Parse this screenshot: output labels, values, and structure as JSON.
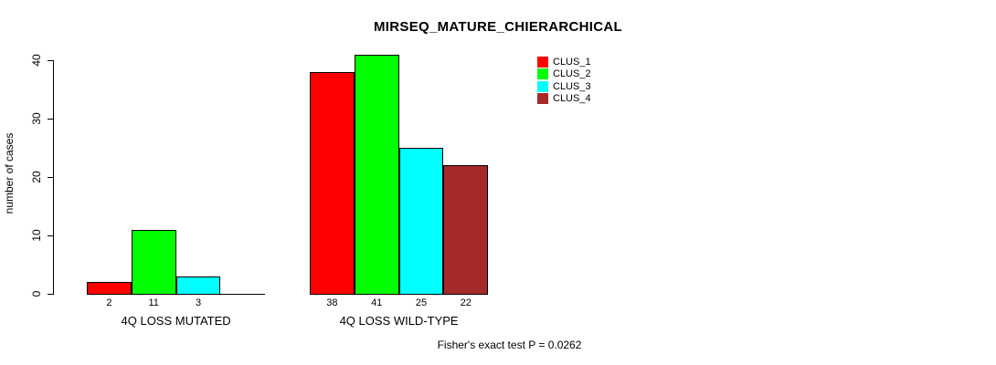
{
  "background": "#FFFFFF",
  "chart_data": {
    "type": "bar",
    "title": "MIRSEQ_MATURE_CHIERARCHICAL",
    "ylabel": "number of cases",
    "xlabel": "",
    "footer": "Fisher's exact test P = 0.0262",
    "categories": [
      "4Q LOSS MUTATED",
      "4Q LOSS WILD-TYPE"
    ],
    "series": [
      {
        "name": "CLUS_1",
        "color": "#FF0000",
        "values": [
          2,
          38
        ]
      },
      {
        "name": "CLUS_2",
        "color": "#00FF00",
        "values": [
          11,
          41
        ]
      },
      {
        "name": "CLUS_3",
        "color": "#00FFFF",
        "values": [
          3,
          25
        ]
      },
      {
        "name": "CLUS_4",
        "color": "#A52A2A",
        "values": [
          0,
          22
        ]
      }
    ],
    "yticks": [
      0,
      10,
      20,
      30,
      40
    ],
    "ylim": [
      0,
      40
    ],
    "grid": false,
    "legend_position": "top-right",
    "bar_border_color": "#000000",
    "value_labels_shown": true,
    "zero_value_labels_hidden": true
  }
}
